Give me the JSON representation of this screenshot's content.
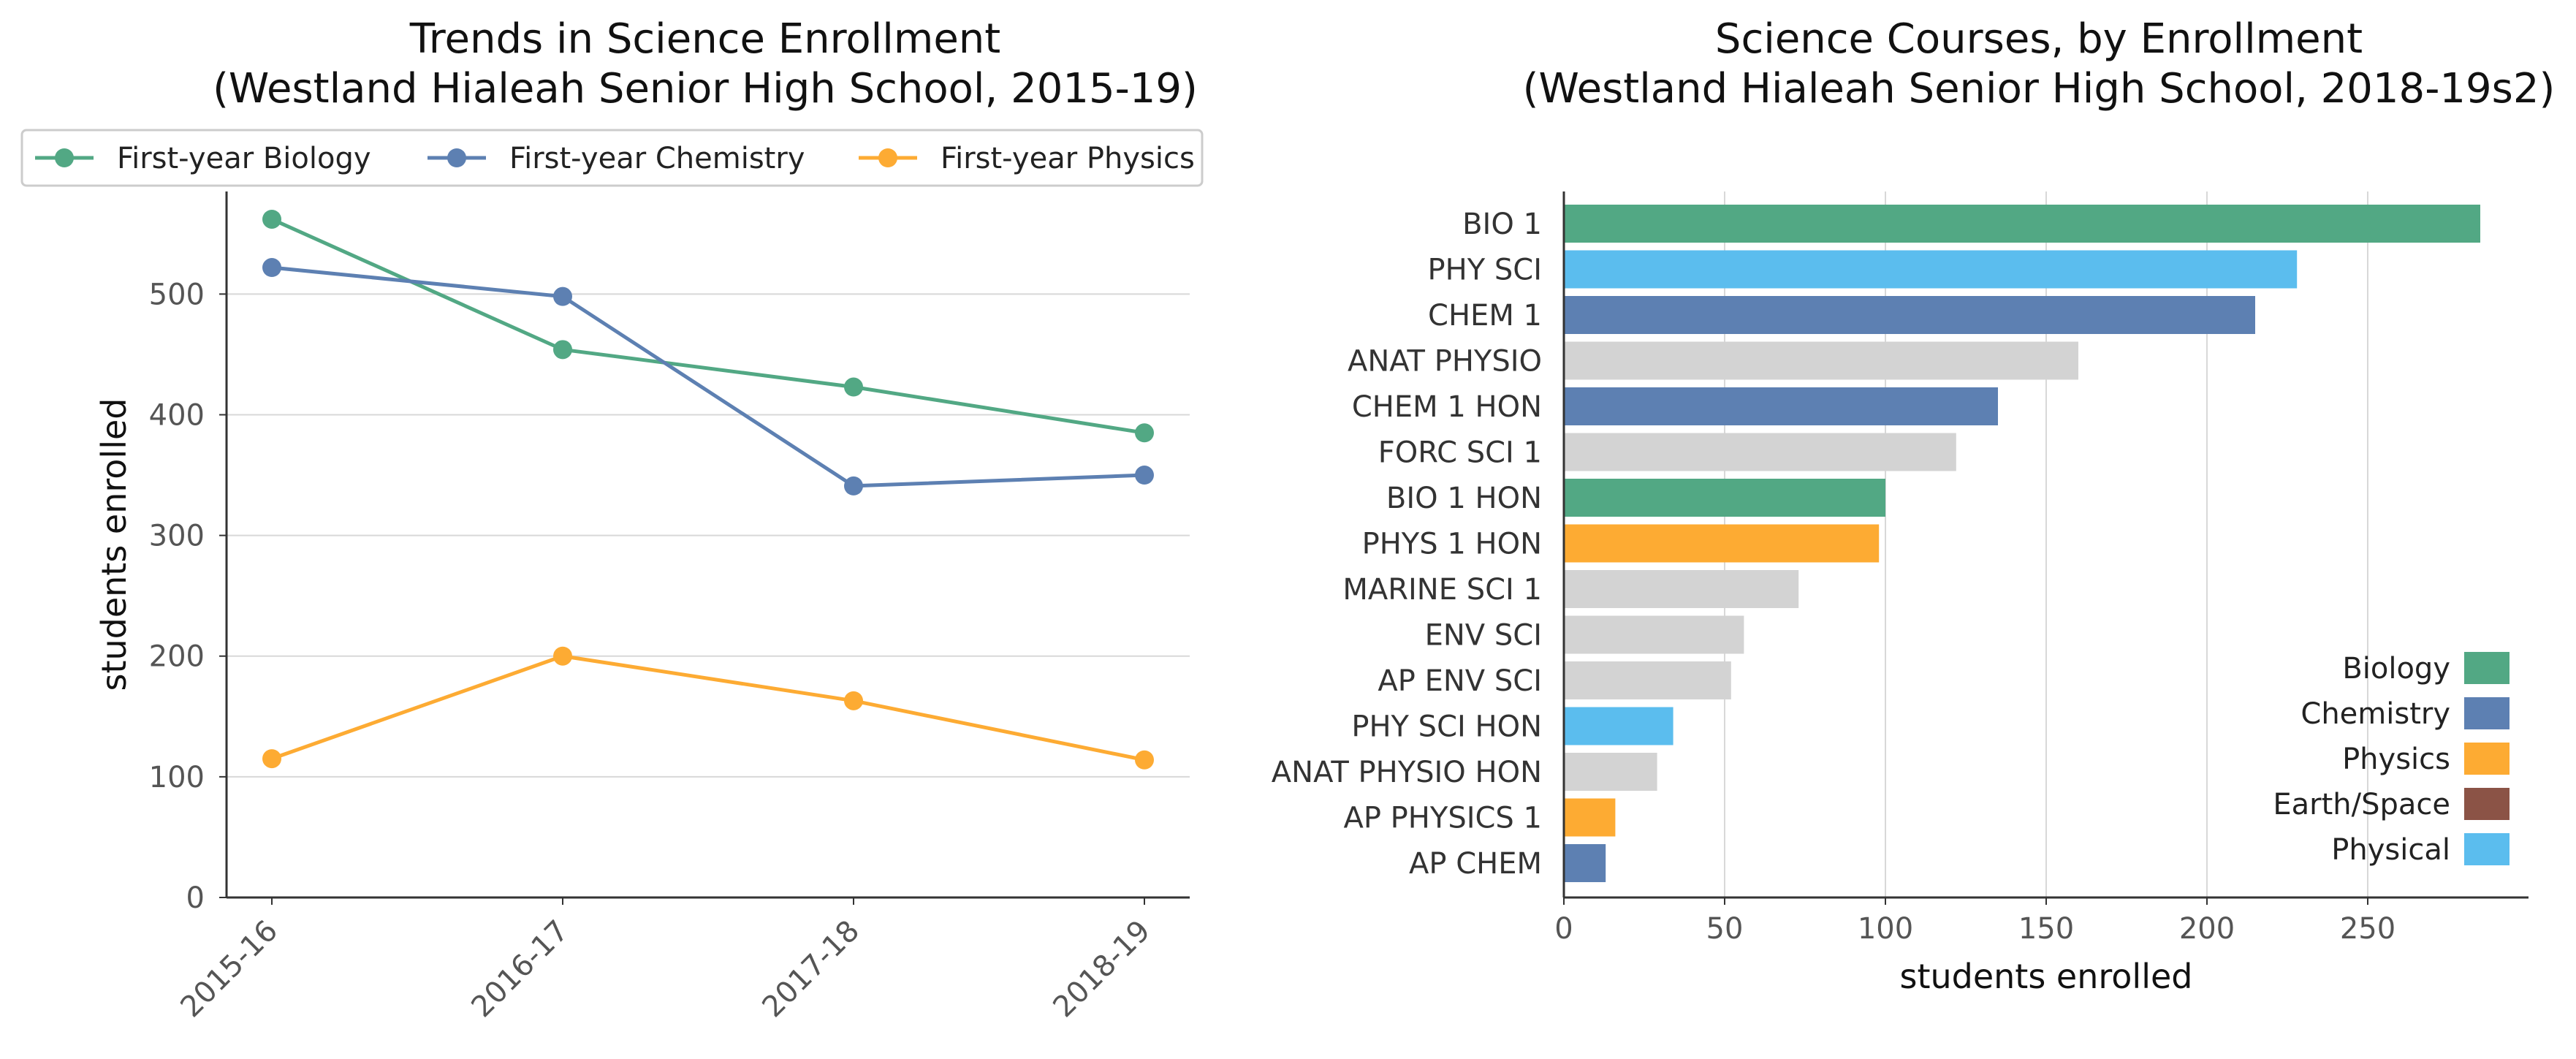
{
  "colors": {
    "biology": "#52a884",
    "chemistry": "#5d80b2",
    "physics": "#fdab33",
    "earth_space": "#8b5346",
    "physical": "#5bbdee",
    "other": "#d3d3d3",
    "axis": "#333333",
    "grid": "#d8d8d8",
    "tick_text": "#555555"
  },
  "chart_data": [
    {
      "type": "line",
      "title": "Trends in Science Enrollment\n(Westland Hialeah Senior High School, 2015-19)",
      "xlabel": "",
      "ylabel": "students enrolled",
      "categories": [
        "2015-16",
        "2016-17",
        "2017-18",
        "2018-19"
      ],
      "series": [
        {
          "name": "First-year Biology",
          "color_key": "biology",
          "values": [
            562,
            454,
            423,
            385
          ]
        },
        {
          "name": "First-year Chemistry",
          "color_key": "chemistry",
          "values": [
            522,
            498,
            341,
            350
          ]
        },
        {
          "name": "First-year Physics",
          "color_key": "physics",
          "values": [
            115,
            200,
            163,
            114
          ]
        }
      ],
      "ylim": [
        0,
        585
      ],
      "yticks": [
        0,
        100,
        200,
        300,
        400,
        500
      ],
      "grid": "horizontal",
      "legend": "top"
    },
    {
      "type": "bar",
      "orientation": "horizontal",
      "title": "Science Courses, by Enrollment\n(Westland Hialeah Senior High School, 2018-19s2)",
      "xlabel": "students enrolled",
      "ylabel": "",
      "categories": [
        "BIO 1",
        "PHY SCI",
        "CHEM 1",
        "ANAT PHYSIO",
        "CHEM 1 HON",
        "FORC SCI 1",
        "BIO 1 HON",
        "PHYS 1 HON",
        "MARINE SCI 1",
        "ENV SCI",
        "AP ENV SCI",
        "PHY SCI HON",
        "ANAT PHYSIO HON",
        "AP PHYSICS 1",
        "AP CHEM"
      ],
      "values": [
        285,
        228,
        215,
        160,
        135,
        122,
        100,
        98,
        73,
        56,
        52,
        34,
        29,
        16,
        13
      ],
      "color_keys": [
        "biology",
        "physical",
        "chemistry",
        "other",
        "chemistry",
        "other",
        "biology",
        "physics",
        "other",
        "other",
        "other",
        "physical",
        "other",
        "physics",
        "chemistry"
      ],
      "xlim": [
        0,
        300
      ],
      "xticks": [
        0,
        50,
        100,
        150,
        200,
        250
      ],
      "grid": "vertical",
      "legend": "bottom-right",
      "legend_entries": [
        {
          "name": "Biology",
          "color_key": "biology"
        },
        {
          "name": "Chemistry",
          "color_key": "chemistry"
        },
        {
          "name": "Physics",
          "color_key": "physics"
        },
        {
          "name": "Earth/Space",
          "color_key": "earth_space"
        },
        {
          "name": "Physical",
          "color_key": "physical"
        }
      ]
    }
  ]
}
